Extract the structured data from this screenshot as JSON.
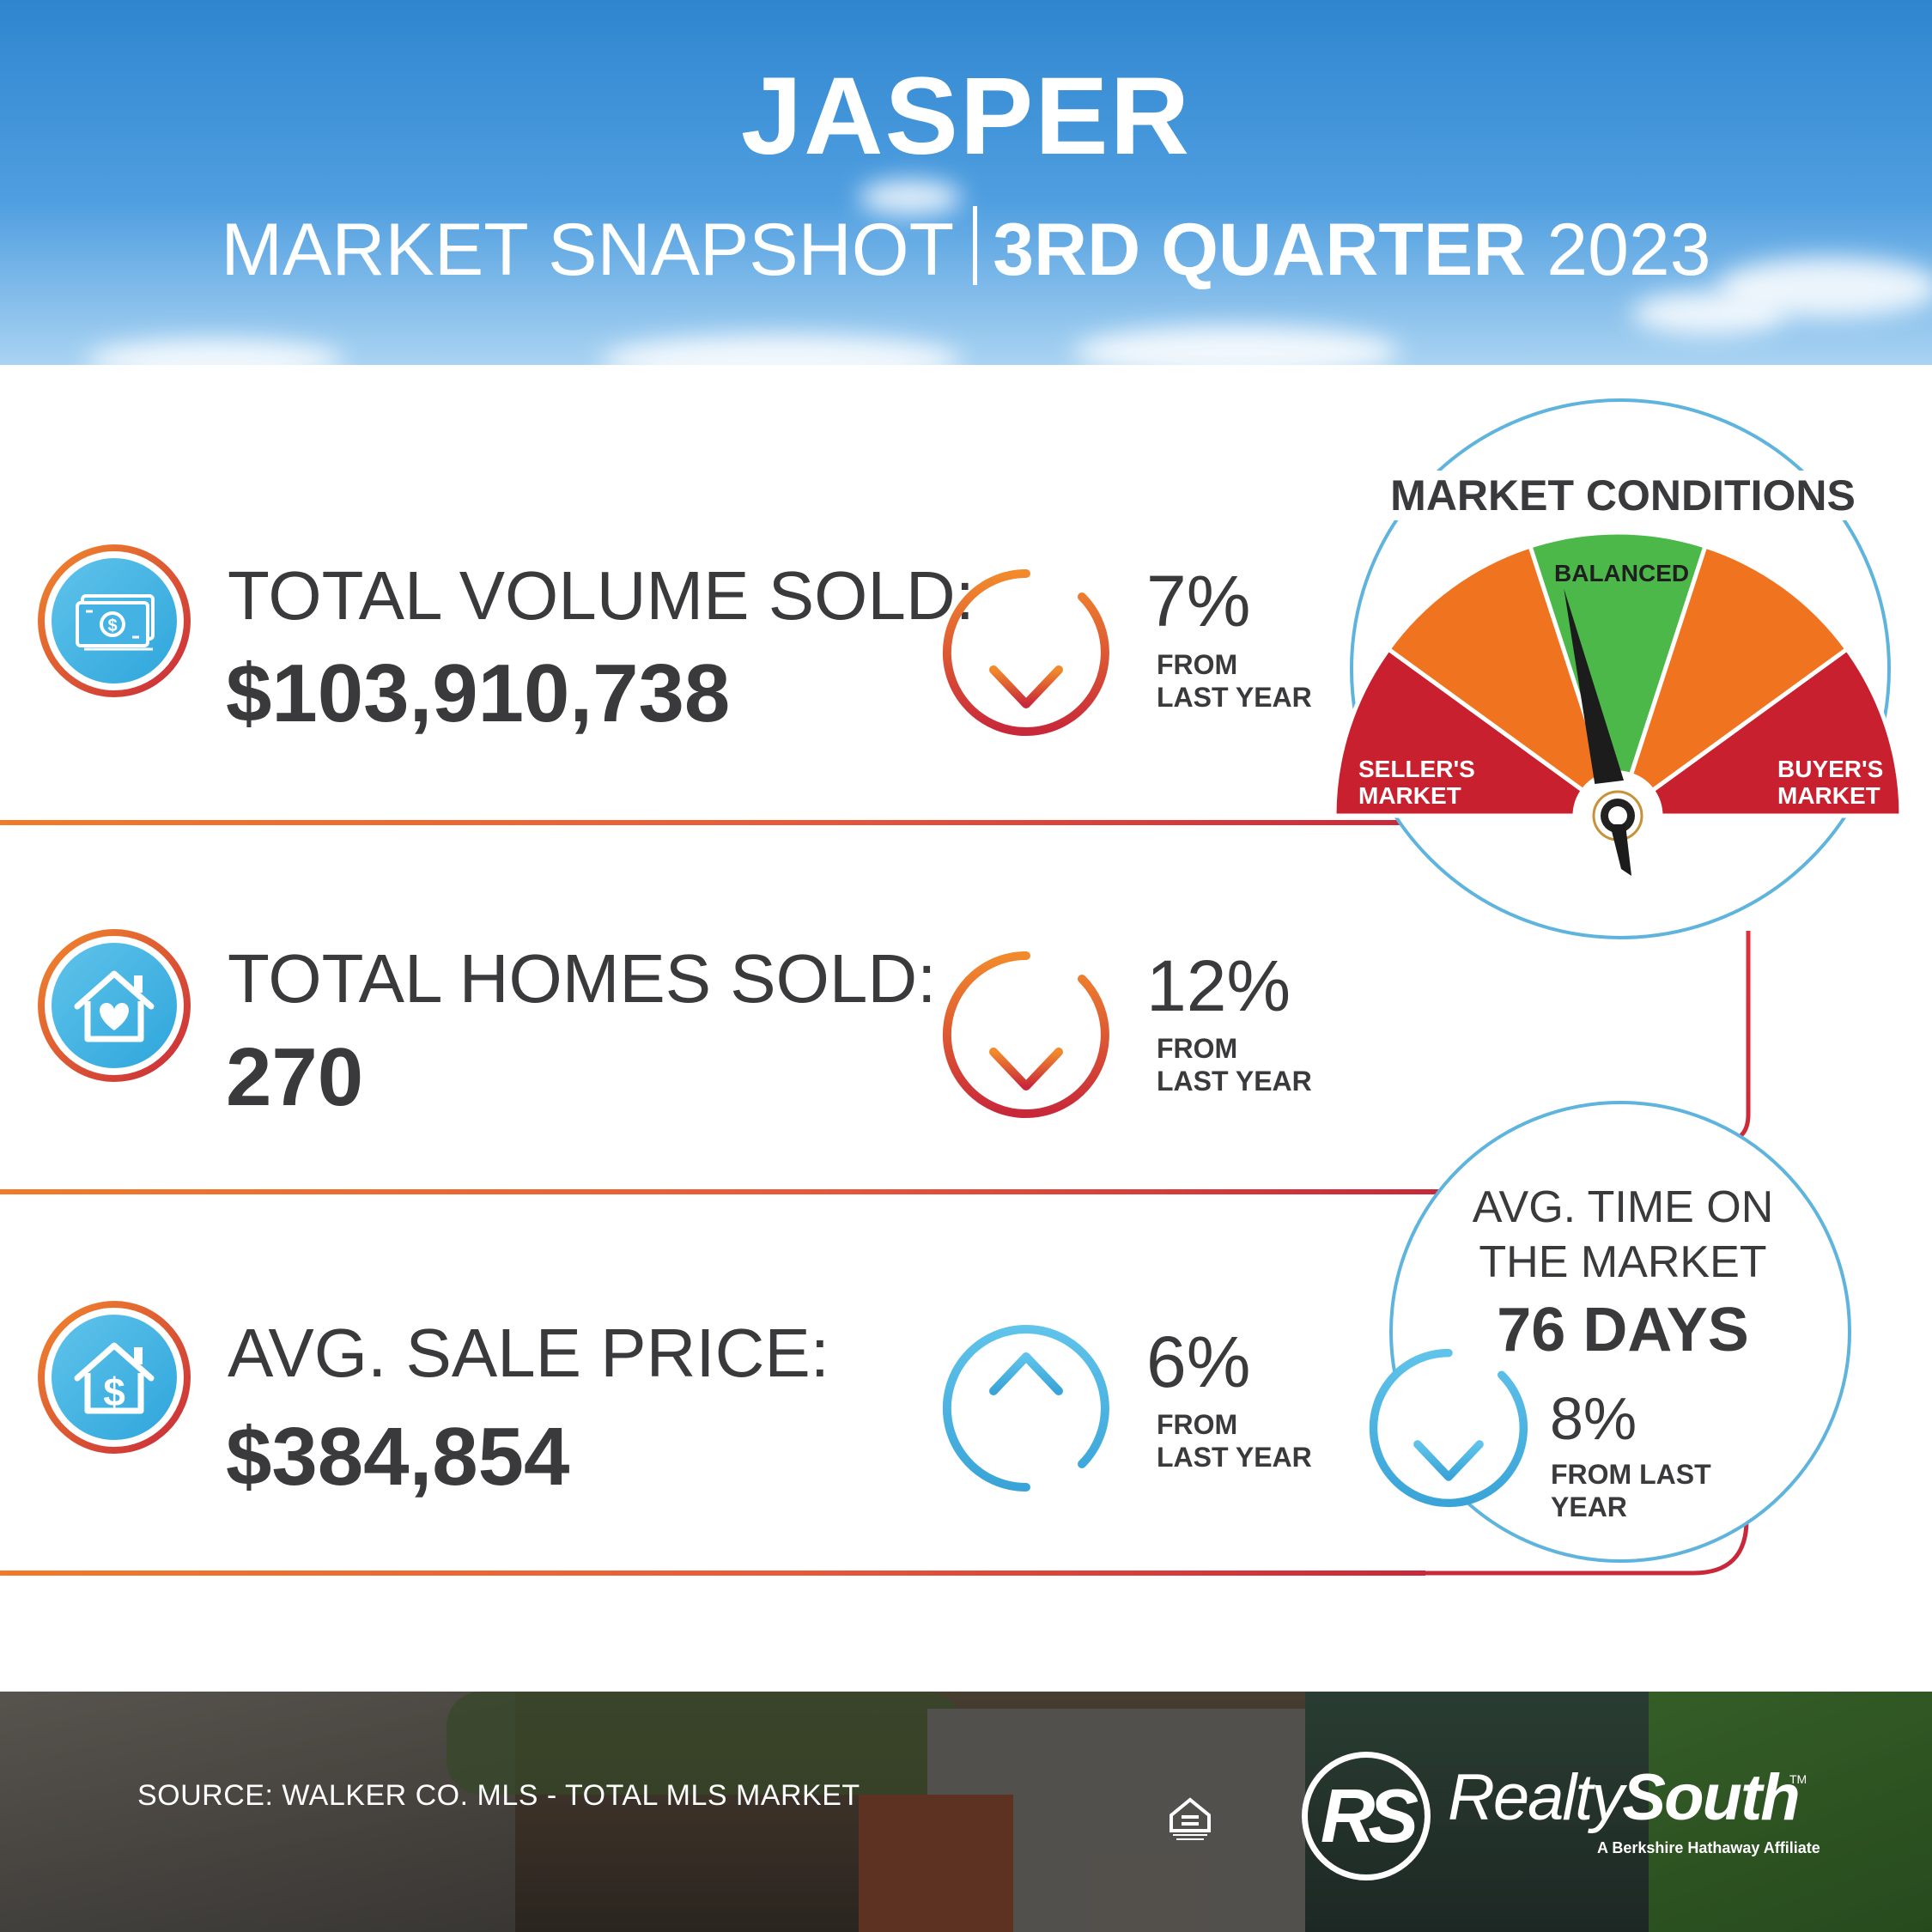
{
  "header": {
    "title": "JASPER",
    "subtitle_left": "MARKET SNAPSHOT",
    "subtitle_bold": "3RD QUARTER",
    "subtitle_year": "2023"
  },
  "stats": [
    {
      "icon": "money-icon",
      "label": "TOTAL VOLUME SOLD:",
      "value": "$103,910,738",
      "change_pct": "7%",
      "change_direction": "down",
      "change_note_line1": "FROM",
      "change_note_line2": "LAST YEAR"
    },
    {
      "icon": "house-heart-icon",
      "label": "TOTAL HOMES SOLD:",
      "value": "270",
      "change_pct": "12%",
      "change_direction": "down",
      "change_note_line1": "FROM",
      "change_note_line2": "LAST YEAR"
    },
    {
      "icon": "house-dollar-icon",
      "label": "AVG. SALE PRICE:",
      "value": "$384,854",
      "change_pct": "6%",
      "change_direction": "up",
      "change_note_line1": "FROM",
      "change_note_line2": "LAST YEAR"
    }
  ],
  "gauge": {
    "title": "MARKET CONDITIONS",
    "center_label": "BALANCED",
    "left_label_line1": "SELLER'S",
    "left_label_line2": "MARKET",
    "right_label_line1": "BUYER'S",
    "right_label_line2": "MARKET",
    "needle_position": "balanced",
    "colors": {
      "red": "#c8202f",
      "orange": "#f07320",
      "green": "#4cb84a"
    }
  },
  "time_on_market": {
    "label_line1": "AVG. TIME ON",
    "label_line2": "THE MARKET",
    "value": "76 DAYS",
    "change_pct": "8%",
    "change_direction": "down",
    "change_note_line1": "FROM LAST",
    "change_note_line2": "YEAR"
  },
  "footer": {
    "source": "SOURCE: WALKER CO. MLS - TOTAL MLS MARKET",
    "brand_light": "Realty",
    "brand_bold": "South",
    "brand_mark": "RS",
    "tagline": "A Berkshire Hathaway Affiliate",
    "trademark": "TM",
    "equal_housing_icon": "equal-housing-opportunity-icon"
  },
  "colors": {
    "text": "#3a3a3c",
    "orange": "#f07b2a",
    "red": "#c8283a",
    "blue": "#3fb0e0"
  }
}
